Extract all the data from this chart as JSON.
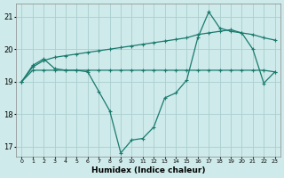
{
  "x": [
    0,
    1,
    2,
    3,
    4,
    5,
    6,
    7,
    8,
    9,
    10,
    11,
    12,
    13,
    14,
    15,
    16,
    17,
    18,
    19,
    20,
    21,
    22,
    23
  ],
  "line_jagged": [
    19.0,
    19.5,
    19.7,
    19.4,
    19.35,
    19.35,
    19.3,
    18.7,
    18.1,
    16.8,
    17.2,
    17.25,
    17.6,
    18.5,
    18.65,
    19.05,
    20.35,
    21.15,
    20.65,
    20.55,
    20.5,
    20.0,
    18.95,
    19.3
  ],
  "line_smooth": [
    19.0,
    19.45,
    19.65,
    19.75,
    19.8,
    19.85,
    19.9,
    19.95,
    20.0,
    20.05,
    20.1,
    20.15,
    20.2,
    20.25,
    20.3,
    20.35,
    20.45,
    20.5,
    20.55,
    20.6,
    20.5,
    20.45,
    20.35,
    20.28
  ],
  "line_flat": [
    19.0,
    19.35,
    19.35,
    19.35,
    19.35,
    19.35,
    19.35,
    19.35,
    19.35,
    19.35,
    19.35,
    19.35,
    19.35,
    19.35,
    19.35,
    19.35,
    19.35,
    19.35,
    19.35,
    19.35,
    19.35,
    19.35,
    19.35,
    19.3
  ],
  "color": "#1a7a6e",
  "bg_color": "#ceeaea",
  "grid_color": "#aacece",
  "xlabel": "Humidex (Indice chaleur)",
  "xlim": [
    -0.5,
    23.5
  ],
  "ylim": [
    16.7,
    21.4
  ],
  "yticks": [
    17,
    18,
    19,
    20,
    21
  ],
  "xticks": [
    0,
    1,
    2,
    3,
    4,
    5,
    6,
    7,
    8,
    9,
    10,
    11,
    12,
    13,
    14,
    15,
    16,
    17,
    18,
    19,
    20,
    21,
    22,
    23
  ],
  "xtick_labels": [
    "0",
    "1",
    "2",
    "3",
    "4",
    "5",
    "6",
    "7",
    "8",
    "9",
    "10",
    "11",
    "12",
    "13",
    "14",
    "15",
    "16",
    "17",
    "18",
    "19",
    "20",
    "21",
    "22",
    "23"
  ]
}
